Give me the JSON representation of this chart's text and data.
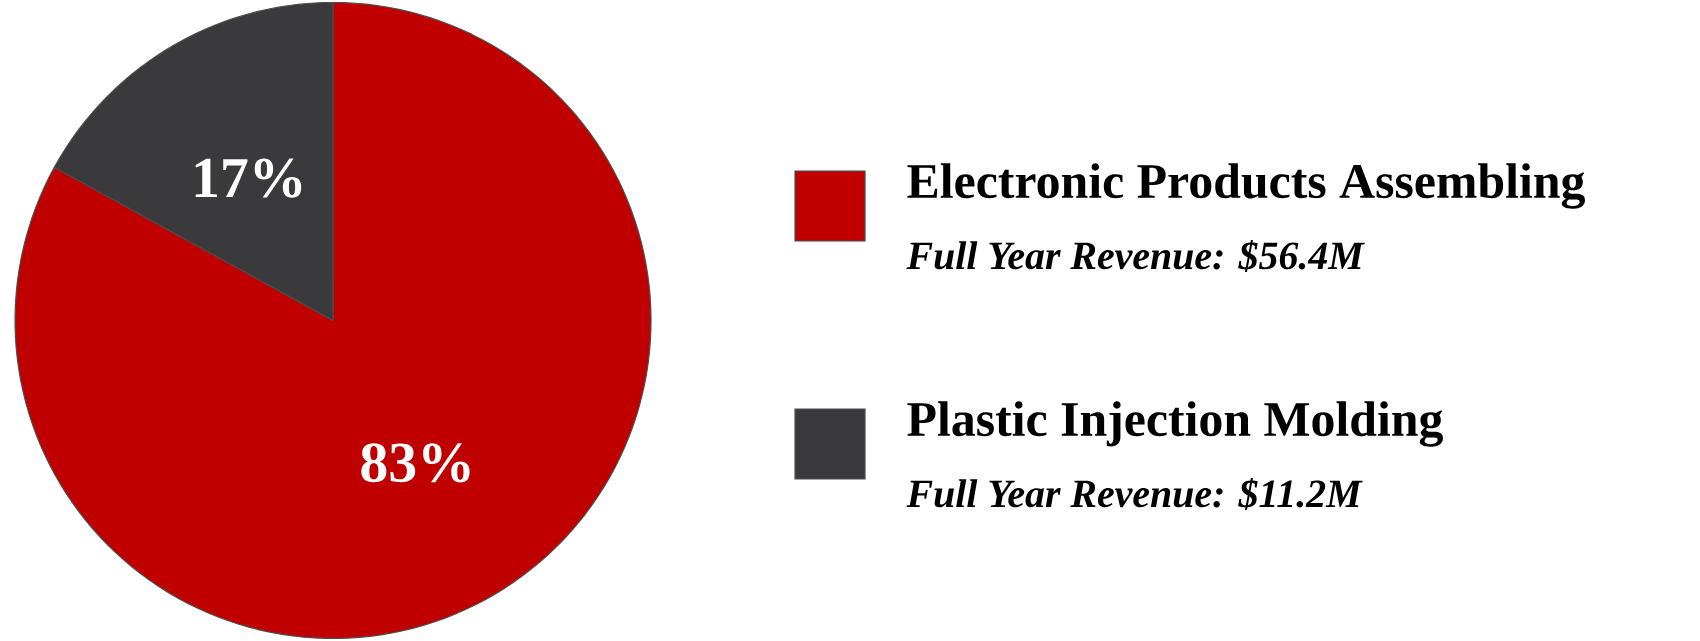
{
  "chart_data": {
    "type": "pie",
    "categories": [
      "Electronic Products Assembling",
      "Plastic Injection Molding"
    ],
    "values": [
      83,
      17
    ],
    "colors": [
      "#c00000",
      "#3a3a3c"
    ],
    "value_labels": [
      "83%",
      "17%"
    ],
    "legend": "right",
    "annotations": [
      "Full Year Revenue: $56.4M",
      "Full Year Revenue: $11.2M"
    ]
  }
}
